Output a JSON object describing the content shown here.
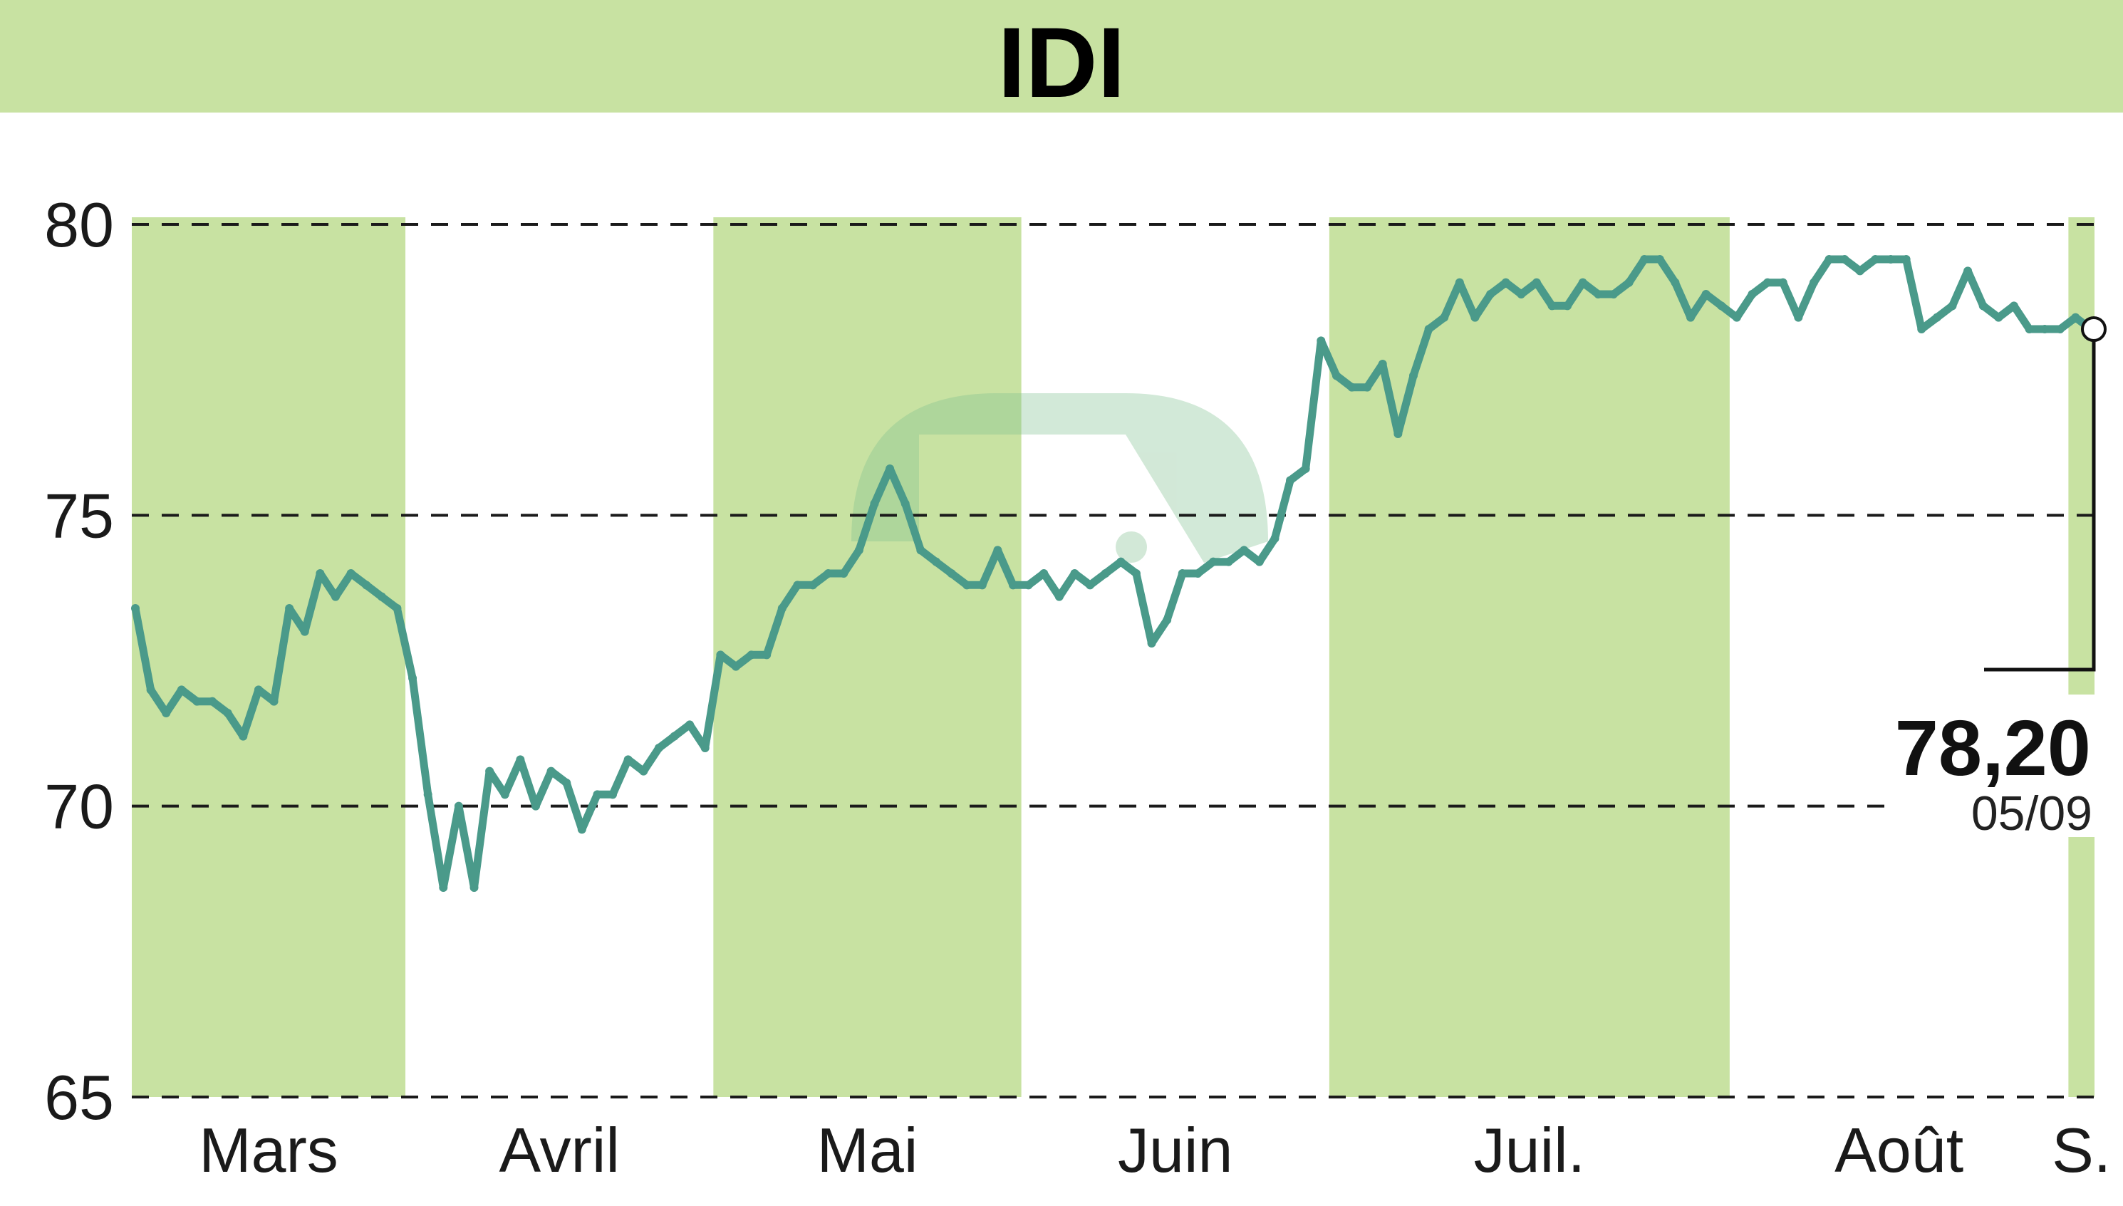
{
  "colors": {
    "banner": "#c8e2a2",
    "month_band": "#c8e2a2",
    "line": "#4a9a8a",
    "grid": "#1a1a1a",
    "watermark": "#7fbf90"
  },
  "icons": {
    "watermark": "logo-watermark-icon",
    "last_point": "circle-marker-icon"
  },
  "chart_data": {
    "type": "line",
    "title": "IDI",
    "ylim": [
      65,
      80
    ],
    "yticks": [
      65,
      70,
      75,
      80
    ],
    "ytick_labels": [
      "65",
      "70",
      "75",
      "80"
    ],
    "grid": "horizontal dashed",
    "months": [
      {
        "label": "Mars",
        "shaded": true
      },
      {
        "label": "Avril",
        "shaded": false
      },
      {
        "label": "Mai",
        "shaded": true
      },
      {
        "label": "Juin",
        "shaded": false
      },
      {
        "label": "Juil.",
        "shaded": true
      },
      {
        "label": "Août",
        "shaded": false
      },
      {
        "label": "S.",
        "shaded": true
      }
    ],
    "series": [
      {
        "values": [
          73.4,
          72.0,
          71.6,
          72.0,
          71.8,
          71.8,
          71.6,
          71.2,
          72.0,
          71.8,
          73.4,
          73.0,
          74.0,
          73.6,
          74.0,
          73.8,
          73.6,
          73.4,
          72.2,
          70.2,
          68.6,
          70.0,
          68.6,
          70.6,
          70.2,
          70.8,
          70.0,
          70.6,
          70.4,
          69.6,
          70.2,
          70.2,
          70.8,
          70.6,
          71.0,
          71.2,
          71.4,
          71.0,
          72.6,
          72.4,
          72.6,
          72.6,
          73.4,
          73.8,
          73.8,
          74.0,
          74.0,
          74.4,
          75.2,
          75.8,
          75.2,
          74.4,
          74.2,
          74.0,
          73.8,
          73.8,
          74.4,
          73.8,
          73.8,
          74.0,
          73.6,
          74.0,
          73.8,
          74.0,
          74.2,
          74.0,
          72.8,
          73.2,
          74.0,
          74.0,
          74.2,
          74.2,
          74.4,
          74.2,
          74.6,
          75.6,
          75.8,
          78.0,
          77.4,
          77.2,
          77.2,
          77.6,
          76.4,
          77.4,
          78.2,
          78.4,
          79.0,
          78.4,
          78.8,
          79.0,
          78.8,
          79.0,
          78.6,
          78.6,
          79.0,
          78.8,
          78.8,
          79.0,
          79.4,
          79.4,
          79.0,
          78.4,
          78.8,
          78.6,
          78.4,
          78.8,
          79.0,
          79.0,
          78.4,
          79.0,
          79.4,
          79.4,
          79.2,
          79.4,
          79.4,
          79.4,
          78.2,
          78.4,
          78.6,
          79.2,
          78.6,
          78.4,
          78.6,
          78.2,
          78.2,
          78.2,
          78.4,
          78.2
        ]
      }
    ],
    "last_value_label": "78,20",
    "last_date_label": "05/09"
  }
}
